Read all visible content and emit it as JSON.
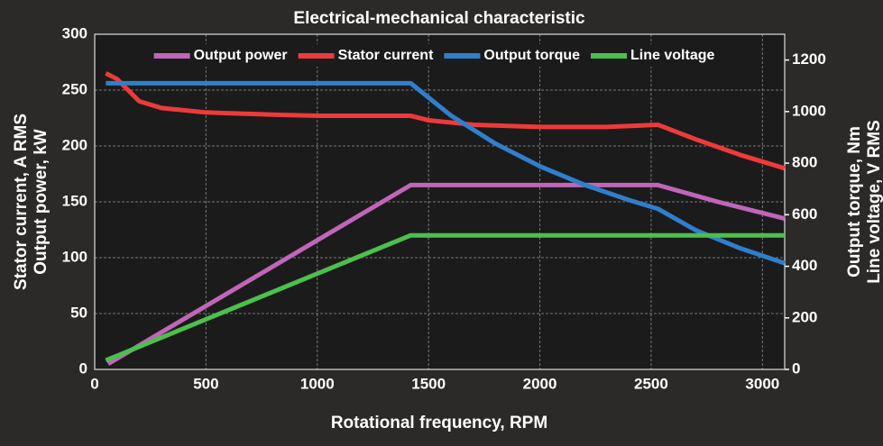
{
  "chart_data": {
    "type": "line",
    "title": "Electrical-mechanical characteristic",
    "x_label": "Rotational frequency, RPM",
    "y_label": [
      "Stator current, A RMS",
      "Output power, kW"
    ],
    "y2_label": [
      "Output torque, Nm",
      "Line voltage, V RMS"
    ],
    "xlim": [
      0,
      3100
    ],
    "xticks": [
      0,
      500,
      1000,
      1500,
      2000,
      2500,
      3000
    ],
    "ylim": [
      0,
      300
    ],
    "yticks": [
      0,
      50,
      100,
      150,
      200,
      250,
      300
    ],
    "y2lim": [
      0,
      1300
    ],
    "y2ticks": [
      0,
      200,
      400,
      600,
      800,
      1000,
      1200
    ],
    "grid": true,
    "legend": "top",
    "series": [
      {
        "name": "Output power",
        "color": "#c066b8",
        "axis": "y",
        "x": [
          60,
          1420,
          2530,
          2800,
          3100
        ],
        "values": [
          5,
          165,
          165,
          150,
          135
        ]
      },
      {
        "name": "Stator current",
        "color": "#ee3a3a",
        "axis": "y",
        "x": [
          50,
          100,
          150,
          200,
          300,
          500,
          800,
          1000,
          1420,
          1500,
          1700,
          2000,
          2300,
          2530,
          2700,
          2900,
          3100
        ],
        "values": [
          265,
          260,
          250,
          240,
          234,
          230,
          228,
          227,
          227,
          223,
          219,
          217,
          217,
          219,
          206,
          192,
          180
        ]
      },
      {
        "name": "Output torque",
        "color": "#2f7fcc",
        "axis": "y2",
        "x": [
          50,
          1420,
          1600,
          1800,
          2000,
          2200,
          2400,
          2530,
          2700,
          2900,
          3100
        ],
        "values": [
          1110,
          1110,
          985,
          876,
          788,
          716,
          657,
          623,
          540,
          470,
          412
        ]
      },
      {
        "name": "Line voltage",
        "color": "#4cbf4c",
        "axis": "y2",
        "x": [
          50,
          1420,
          3100
        ],
        "values": [
          35,
          520,
          520
        ]
      }
    ]
  }
}
